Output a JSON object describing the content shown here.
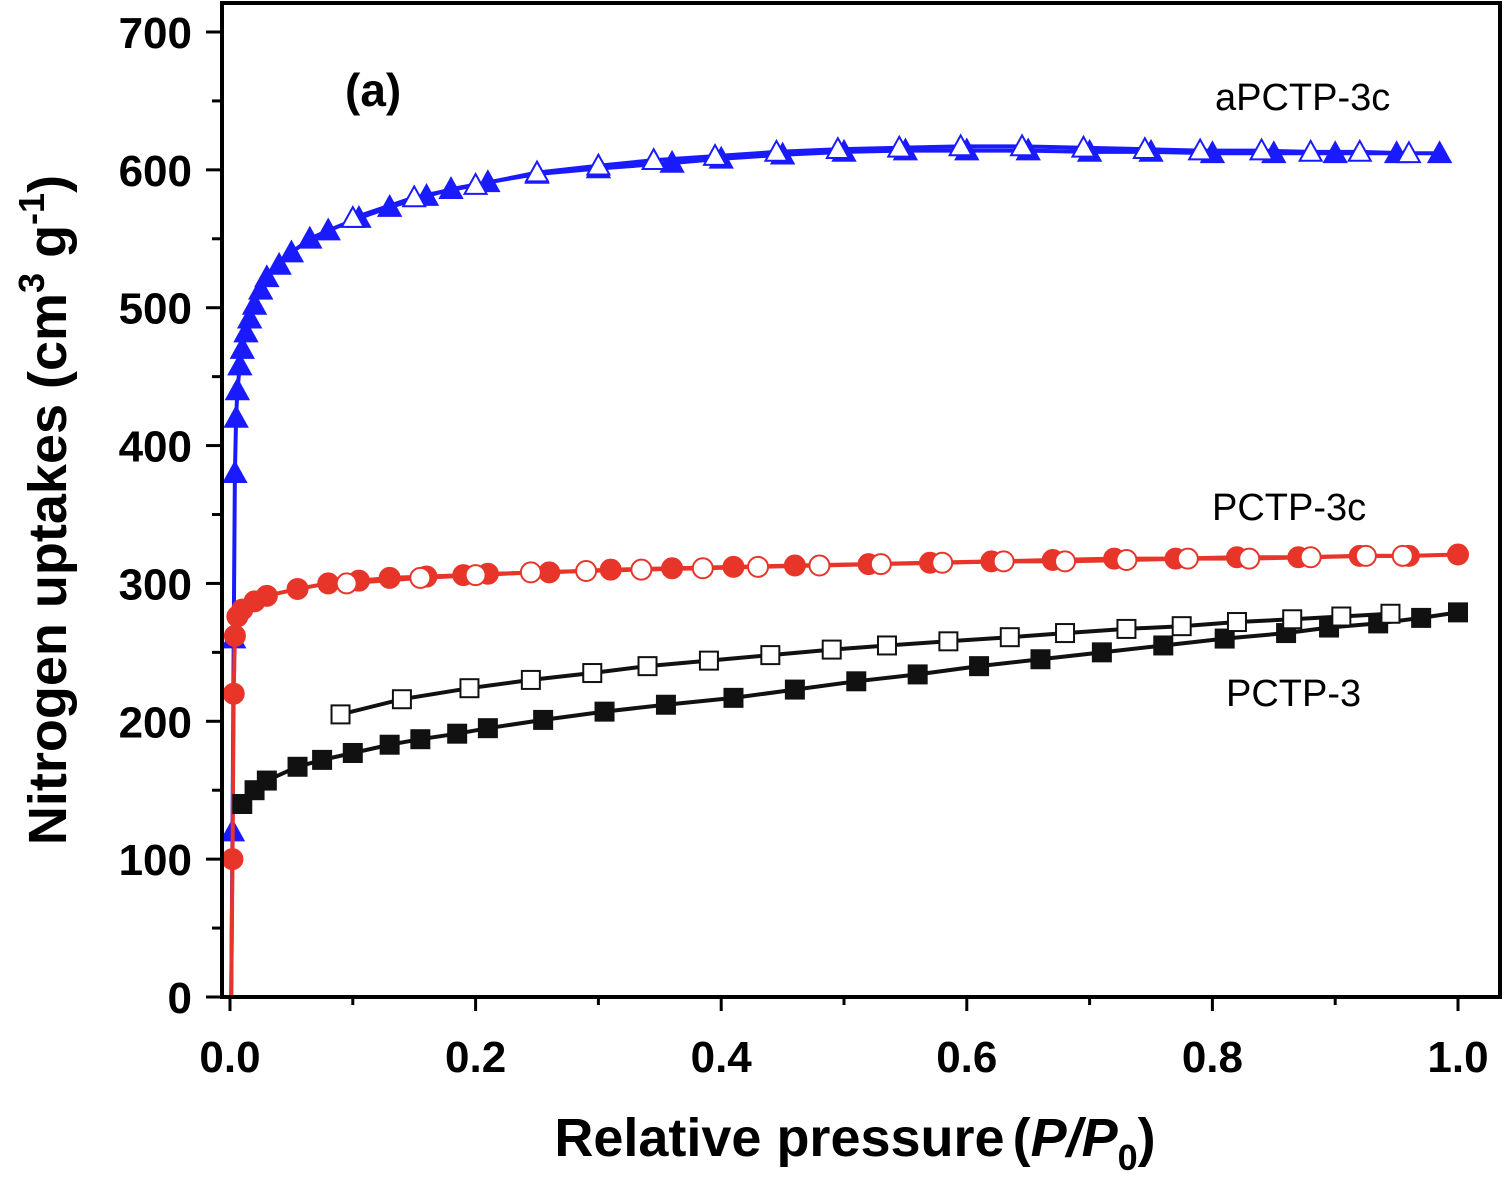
{
  "chart_data": {
    "type": "scatter",
    "panel_label": "(a)",
    "xlabel_main": "Relative pressure",
    "xlabel_paren_open": "(",
    "xlabel_P": "P",
    "xlabel_slash": "/",
    "xlabel_P0": "P",
    "xlabel_sub": "0",
    "xlabel_paren_close": ")",
    "ylabel_main": "Nitrogen uptakes (cm",
    "ylabel_sup1": "3",
    "ylabel_g": " g",
    "ylabel_sup2": "-1",
    "ylabel_close": ")",
    "xlim": [
      0,
      1.0
    ],
    "ylim": [
      0,
      700
    ],
    "xticks": [
      "0.0",
      "0.2",
      "0.4",
      "0.6",
      "0.8",
      "1.0"
    ],
    "yticks": [
      "0",
      "100",
      "200",
      "300",
      "400",
      "500",
      "600",
      "700"
    ],
    "grid": false,
    "series": [
      {
        "name": "aPCTP-3c",
        "color": "#1a1aff",
        "marker": "triangle",
        "adsorption": [
          [
            0.001,
            0
          ],
          [
            0.002,
            120
          ],
          [
            0.003,
            260
          ],
          [
            0.004,
            380
          ],
          [
            0.005,
            420
          ],
          [
            0.006,
            440
          ],
          [
            0.008,
            458
          ],
          [
            0.01,
            470
          ],
          [
            0.013,
            482
          ],
          [
            0.016,
            492
          ],
          [
            0.02,
            502
          ],
          [
            0.025,
            513
          ],
          [
            0.03,
            522
          ],
          [
            0.04,
            531
          ],
          [
            0.05,
            540
          ],
          [
            0.065,
            550
          ],
          [
            0.08,
            556
          ],
          [
            0.105,
            565
          ],
          [
            0.13,
            573
          ],
          [
            0.16,
            581
          ],
          [
            0.18,
            586
          ],
          [
            0.21,
            591
          ],
          [
            0.25,
            597
          ],
          [
            0.3,
            601
          ],
          [
            0.36,
            605
          ],
          [
            0.4,
            608
          ],
          [
            0.45,
            611
          ],
          [
            0.5,
            613
          ],
          [
            0.55,
            614
          ],
          [
            0.6,
            614
          ],
          [
            0.65,
            614
          ],
          [
            0.7,
            613
          ],
          [
            0.75,
            613
          ],
          [
            0.8,
            612
          ],
          [
            0.85,
            612
          ],
          [
            0.9,
            612
          ],
          [
            0.95,
            612
          ],
          [
            0.985,
            612
          ]
        ],
        "desorption": [
          [
            0.1,
            565
          ],
          [
            0.15,
            580
          ],
          [
            0.2,
            589
          ],
          [
            0.25,
            598
          ],
          [
            0.3,
            603
          ],
          [
            0.345,
            607
          ],
          [
            0.395,
            610
          ],
          [
            0.445,
            613
          ],
          [
            0.495,
            615
          ],
          [
            0.545,
            616
          ],
          [
            0.595,
            617
          ],
          [
            0.645,
            617
          ],
          [
            0.695,
            616
          ],
          [
            0.745,
            615
          ],
          [
            0.79,
            614
          ],
          [
            0.84,
            614
          ],
          [
            0.88,
            613
          ],
          [
            0.92,
            613
          ],
          [
            0.96,
            612
          ]
        ]
      },
      {
        "name": "PCTP-3c",
        "color": "#e8352a",
        "marker": "circle",
        "adsorption": [
          [
            0.001,
            0
          ],
          [
            0.002,
            100
          ],
          [
            0.003,
            220
          ],
          [
            0.004,
            262
          ],
          [
            0.006,
            276
          ],
          [
            0.01,
            281
          ],
          [
            0.02,
            287
          ],
          [
            0.03,
            291
          ],
          [
            0.055,
            296
          ],
          [
            0.08,
            300
          ],
          [
            0.105,
            302
          ],
          [
            0.13,
            304
          ],
          [
            0.16,
            305
          ],
          [
            0.19,
            306
          ],
          [
            0.21,
            307
          ],
          [
            0.26,
            308
          ],
          [
            0.31,
            310
          ],
          [
            0.36,
            311
          ],
          [
            0.41,
            312
          ],
          [
            0.46,
            313
          ],
          [
            0.52,
            314
          ],
          [
            0.57,
            315
          ],
          [
            0.62,
            316
          ],
          [
            0.67,
            317
          ],
          [
            0.72,
            318
          ],
          [
            0.77,
            318
          ],
          [
            0.82,
            319
          ],
          [
            0.87,
            319
          ],
          [
            0.92,
            320
          ],
          [
            0.96,
            320
          ],
          [
            1.0,
            321
          ]
        ],
        "desorption": [
          [
            0.095,
            300
          ],
          [
            0.155,
            304
          ],
          [
            0.2,
            306
          ],
          [
            0.245,
            308
          ],
          [
            0.29,
            309
          ],
          [
            0.335,
            310
          ],
          [
            0.385,
            311
          ],
          [
            0.43,
            312
          ],
          [
            0.48,
            313
          ],
          [
            0.53,
            314
          ],
          [
            0.58,
            315
          ],
          [
            0.63,
            316
          ],
          [
            0.68,
            316
          ],
          [
            0.73,
            317
          ],
          [
            0.78,
            318
          ],
          [
            0.83,
            318
          ],
          [
            0.88,
            319
          ],
          [
            0.925,
            320
          ],
          [
            0.955,
            320
          ]
        ]
      },
      {
        "name": "PCTP-3",
        "color": "#111111",
        "marker": "square",
        "adsorption": [
          [
            0.01,
            140
          ],
          [
            0.02,
            150
          ],
          [
            0.03,
            157
          ],
          [
            0.055,
            167
          ],
          [
            0.075,
            172
          ],
          [
            0.1,
            177
          ],
          [
            0.13,
            183
          ],
          [
            0.155,
            187
          ],
          [
            0.185,
            191
          ],
          [
            0.21,
            195
          ],
          [
            0.255,
            201
          ],
          [
            0.305,
            207
          ],
          [
            0.355,
            212
          ],
          [
            0.41,
            217
          ],
          [
            0.46,
            223
          ],
          [
            0.51,
            229
          ],
          [
            0.56,
            234
          ],
          [
            0.61,
            240
          ],
          [
            0.66,
            245
          ],
          [
            0.71,
            250
          ],
          [
            0.76,
            255
          ],
          [
            0.81,
            260
          ],
          [
            0.86,
            264
          ],
          [
            0.895,
            268
          ],
          [
            0.935,
            271
          ],
          [
            0.97,
            275
          ],
          [
            1.0,
            279
          ]
        ],
        "desorption": [
          [
            0.09,
            205
          ],
          [
            0.14,
            216
          ],
          [
            0.195,
            224
          ],
          [
            0.245,
            230
          ],
          [
            0.295,
            235
          ],
          [
            0.34,
            240
          ],
          [
            0.39,
            244
          ],
          [
            0.44,
            248
          ],
          [
            0.49,
            252
          ],
          [
            0.535,
            255
          ],
          [
            0.585,
            258
          ],
          [
            0.635,
            261
          ],
          [
            0.68,
            264
          ],
          [
            0.73,
            267
          ],
          [
            0.775,
            269
          ],
          [
            0.82,
            272
          ],
          [
            0.865,
            274
          ],
          [
            0.905,
            276
          ],
          [
            0.945,
            278
          ]
        ]
      }
    ]
  }
}
